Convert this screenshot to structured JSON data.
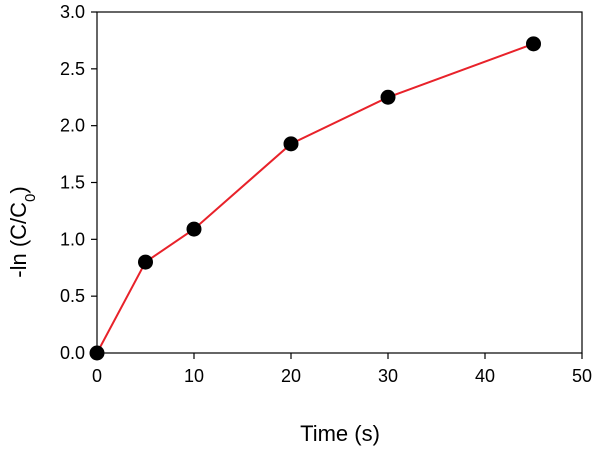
{
  "chart_data": {
    "type": "line",
    "xlabel": "Time (s)",
    "ylabel": {
      "prefix": "-ln (C/C",
      "subscript": "0",
      "suffix": ")"
    },
    "xlim": [
      0,
      50
    ],
    "ylim": [
      0,
      3.0
    ],
    "x_ticks": [
      0,
      10,
      20,
      30,
      40,
      50
    ],
    "y_ticks": [
      0.0,
      0.5,
      1.0,
      1.5,
      2.0,
      2.5,
      3.0
    ],
    "x_tick_labels": [
      "0",
      "10",
      "20",
      "30",
      "40",
      "50"
    ],
    "y_tick_labels": [
      "0.0",
      "0.5",
      "1.0",
      "1.5",
      "2.0",
      "2.5",
      "3.0"
    ],
    "grid": false,
    "series": [
      {
        "x": [
          0,
          5,
          10,
          20,
          30,
          45
        ],
        "y": [
          0.0,
          0.8,
          1.09,
          1.84,
          2.25,
          2.72
        ],
        "line_color": "#e8222a",
        "marker_color": "#000000"
      }
    ]
  }
}
